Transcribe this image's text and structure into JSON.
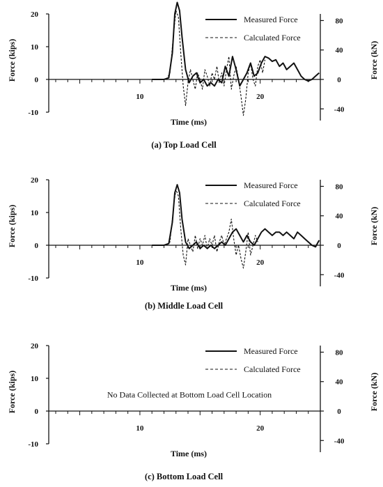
{
  "chart_data": [
    {
      "type": "line",
      "caption": "(a)  Top Load Cell",
      "xlabel": "Time (ms)",
      "ylabel": "Force (kips)",
      "y2label": "Force (kN)",
      "xlim": [
        3,
        25
      ],
      "ylim": [
        -10,
        20
      ],
      "x_ticks": [
        10,
        20
      ],
      "x_tick_labels": [
        "10",
        "20"
      ],
      "y_ticks": [
        -10,
        0,
        10,
        20
      ],
      "y_tick_labels": [
        "-10",
        "0",
        "10",
        "20"
      ],
      "y2_ticks": [
        -40,
        0,
        40,
        80
      ],
      "y2_tick_labels": [
        "-40",
        "0",
        "40",
        "80"
      ],
      "legend_position": "top-right",
      "note": "",
      "series": [
        {
          "name": "Measured Force",
          "style": "solid",
          "x": [
            11.0,
            12.0,
            12.4,
            12.7,
            12.9,
            13.1,
            13.3,
            13.5,
            13.8,
            14.1,
            14.4,
            14.7,
            15.0,
            15.3,
            15.6,
            15.9,
            16.2,
            16.5,
            16.8,
            17.1,
            17.4,
            17.7,
            18.0,
            18.3,
            18.6,
            18.9,
            19.2,
            19.5,
            19.8,
            20.1,
            20.4,
            20.7,
            21.0,
            21.3,
            21.6,
            21.9,
            22.2,
            22.5,
            22.8,
            23.1,
            23.4,
            23.7,
            24.0,
            24.3,
            24.6,
            24.9
          ],
          "y": [
            0,
            0,
            0.5,
            8,
            20,
            23.5,
            21,
            13,
            3,
            -1,
            1,
            2,
            -1,
            0,
            -2,
            -1,
            -2,
            0,
            -1,
            4,
            1,
            7,
            3,
            -2,
            0,
            2,
            5,
            1,
            2,
            5,
            7,
            6.5,
            5.5,
            6,
            4,
            5,
            3,
            4,
            5,
            3,
            1,
            0,
            -0.5,
            0,
            1,
            2
          ]
        },
        {
          "name": "Calculated Force",
          "style": "dashed",
          "x": [
            12.2,
            12.5,
            12.8,
            13.0,
            13.2,
            13.4,
            13.6,
            13.8,
            14.0,
            14.2,
            14.4,
            14.6,
            14.8,
            15.0,
            15.2,
            15.4,
            15.6,
            15.8,
            16.0,
            16.2,
            16.4,
            16.6,
            16.8,
            17.0,
            17.2,
            17.4,
            17.6,
            17.8,
            18.0,
            18.2,
            18.4,
            18.6,
            18.8,
            19.0,
            19.2,
            19.4,
            19.6,
            19.8,
            20.0,
            20.2,
            20.4
          ],
          "y": [
            0,
            2,
            14,
            21,
            19,
            8,
            -2,
            -8,
            -1,
            3,
            0,
            -3,
            2,
            0,
            -3,
            3,
            1,
            -2,
            2,
            0,
            4,
            -1,
            2,
            -2,
            3,
            7,
            -3,
            1,
            4,
            0,
            -5,
            -11,
            -6,
            2,
            5,
            0,
            -2,
            4,
            6,
            2,
            6
          ]
        }
      ]
    },
    {
      "type": "line",
      "caption": "(b)  Middle Load Cell",
      "xlabel": "Time (ms)",
      "ylabel": "Force (kips)",
      "y2label": "Force (kN)",
      "xlim": [
        3,
        25
      ],
      "ylim": [
        -10,
        20
      ],
      "x_ticks": [
        10,
        20
      ],
      "x_tick_labels": [
        "10",
        "20"
      ],
      "y_ticks": [
        -10,
        0,
        10,
        20
      ],
      "y_tick_labels": [
        "-10",
        "0",
        "10",
        "20"
      ],
      "y2_ticks": [
        -40,
        0,
        40,
        80
      ],
      "y2_tick_labels": [
        "-40",
        "0",
        "40",
        "80"
      ],
      "legend_position": "top-right",
      "note": "",
      "series": [
        {
          "name": "Measured Force",
          "style": "solid",
          "x": [
            11.0,
            12.0,
            12.4,
            12.7,
            12.9,
            13.1,
            13.3,
            13.5,
            13.8,
            14.1,
            14.4,
            14.7,
            15.0,
            15.3,
            15.6,
            15.9,
            16.2,
            16.5,
            16.8,
            17.1,
            17.4,
            17.7,
            18.0,
            18.3,
            18.6,
            18.9,
            19.2,
            19.5,
            19.8,
            20.1,
            20.4,
            20.7,
            21.0,
            21.3,
            21.6,
            21.9,
            22.2,
            22.5,
            22.8,
            23.1,
            23.4,
            23.7,
            24.0,
            24.3,
            24.6,
            24.9
          ],
          "y": [
            0,
            0,
            0.5,
            7,
            16,
            18.5,
            16,
            8,
            1,
            -1,
            0,
            1,
            -1,
            0,
            -1,
            0,
            -1,
            0,
            1,
            0,
            2,
            4,
            5,
            3,
            1,
            3,
            1,
            0,
            2,
            4,
            5,
            4,
            3,
            4,
            4,
            3,
            4,
            3,
            2,
            4,
            3,
            2,
            1,
            0,
            -0.5,
            1.5
          ]
        },
        {
          "name": "Calculated Force",
          "style": "dashed",
          "x": [
            12.2,
            12.5,
            12.8,
            13.0,
            13.2,
            13.4,
            13.6,
            13.8,
            14.0,
            14.2,
            14.4,
            14.6,
            14.8,
            15.0,
            15.2,
            15.4,
            15.6,
            15.8,
            16.0,
            16.2,
            16.4,
            16.6,
            16.8,
            17.0,
            17.2,
            17.4,
            17.6,
            17.8,
            18.0,
            18.2,
            18.4,
            18.6,
            18.8,
            19.0,
            19.2,
            19.4,
            19.6,
            19.8
          ],
          "y": [
            0,
            1,
            12,
            17,
            15,
            5,
            -3,
            -6,
            2,
            0,
            -2,
            3,
            -1,
            2,
            0,
            3,
            -1,
            2,
            0,
            3,
            -2,
            1,
            3,
            0,
            2,
            4,
            8,
            2,
            -3,
            0,
            -4,
            -7,
            -2,
            4,
            -3,
            0,
            3,
            1
          ]
        }
      ]
    },
    {
      "type": "line",
      "caption": "(c)  Bottom Load Cell",
      "xlabel": "Time (ms)",
      "ylabel": "Force (kips)",
      "y2label": "Force (kN)",
      "xlim": [
        3,
        25
      ],
      "ylim": [
        -10,
        20
      ],
      "x_ticks": [
        10,
        20
      ],
      "x_tick_labels": [
        "10",
        "20"
      ],
      "y_ticks": [
        -10,
        0,
        10,
        20
      ],
      "y_tick_labels": [
        "-10",
        "0",
        "10",
        "20"
      ],
      "y2_ticks": [
        -40,
        0,
        40,
        80
      ],
      "y2_tick_labels": [
        "-40",
        "0",
        "40",
        "80"
      ],
      "legend_position": "top-right",
      "note": "No Data Collected at Bottom Load Cell Location",
      "series": [
        {
          "name": "Measured Force",
          "style": "solid",
          "x": [],
          "y": []
        },
        {
          "name": "Calculated Force",
          "style": "dashed",
          "x": [],
          "y": []
        }
      ]
    }
  ]
}
